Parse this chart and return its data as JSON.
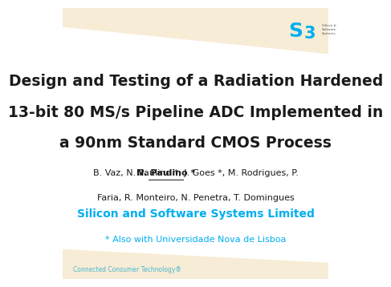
{
  "title_line1": "Design and Testing of a Radiation Hardened",
  "title_line2": "13-bit 80 MS/s Pipeline ADC Implemented in",
  "title_line3": "a 90nm Standard CMOS Process",
  "authors_line1": "B. Vaz, N. Paulino *, J. Goes *, M. Rodrigues, P.",
  "authors_line2": "Faria, R. Monteiro, N. Penetra, T. Domingues",
  "authors_bold_underline": "N. Paulino *",
  "org_line1": "Silicon and Software Systems Limited",
  "org_line2": "* Also with Universidade Nova de Lisboa",
  "footer_text": "Connected Consumer Technology®",
  "bg_color": "#ffffff",
  "title_color": "#1a1a1a",
  "authors_color": "#1a1a1a",
  "org_color": "#00aeef",
  "footer_color": "#4ab8d4",
  "stripe_color_top": "#f5e6c8",
  "stripe_color_bottom": "#f5e6c8",
  "logo_teal": "#00aeef",
  "logo_orange": "#f5a623",
  "logo_small_text": "Silicon &\nSoftware\nSystems",
  "logo_small_color": "#555555"
}
